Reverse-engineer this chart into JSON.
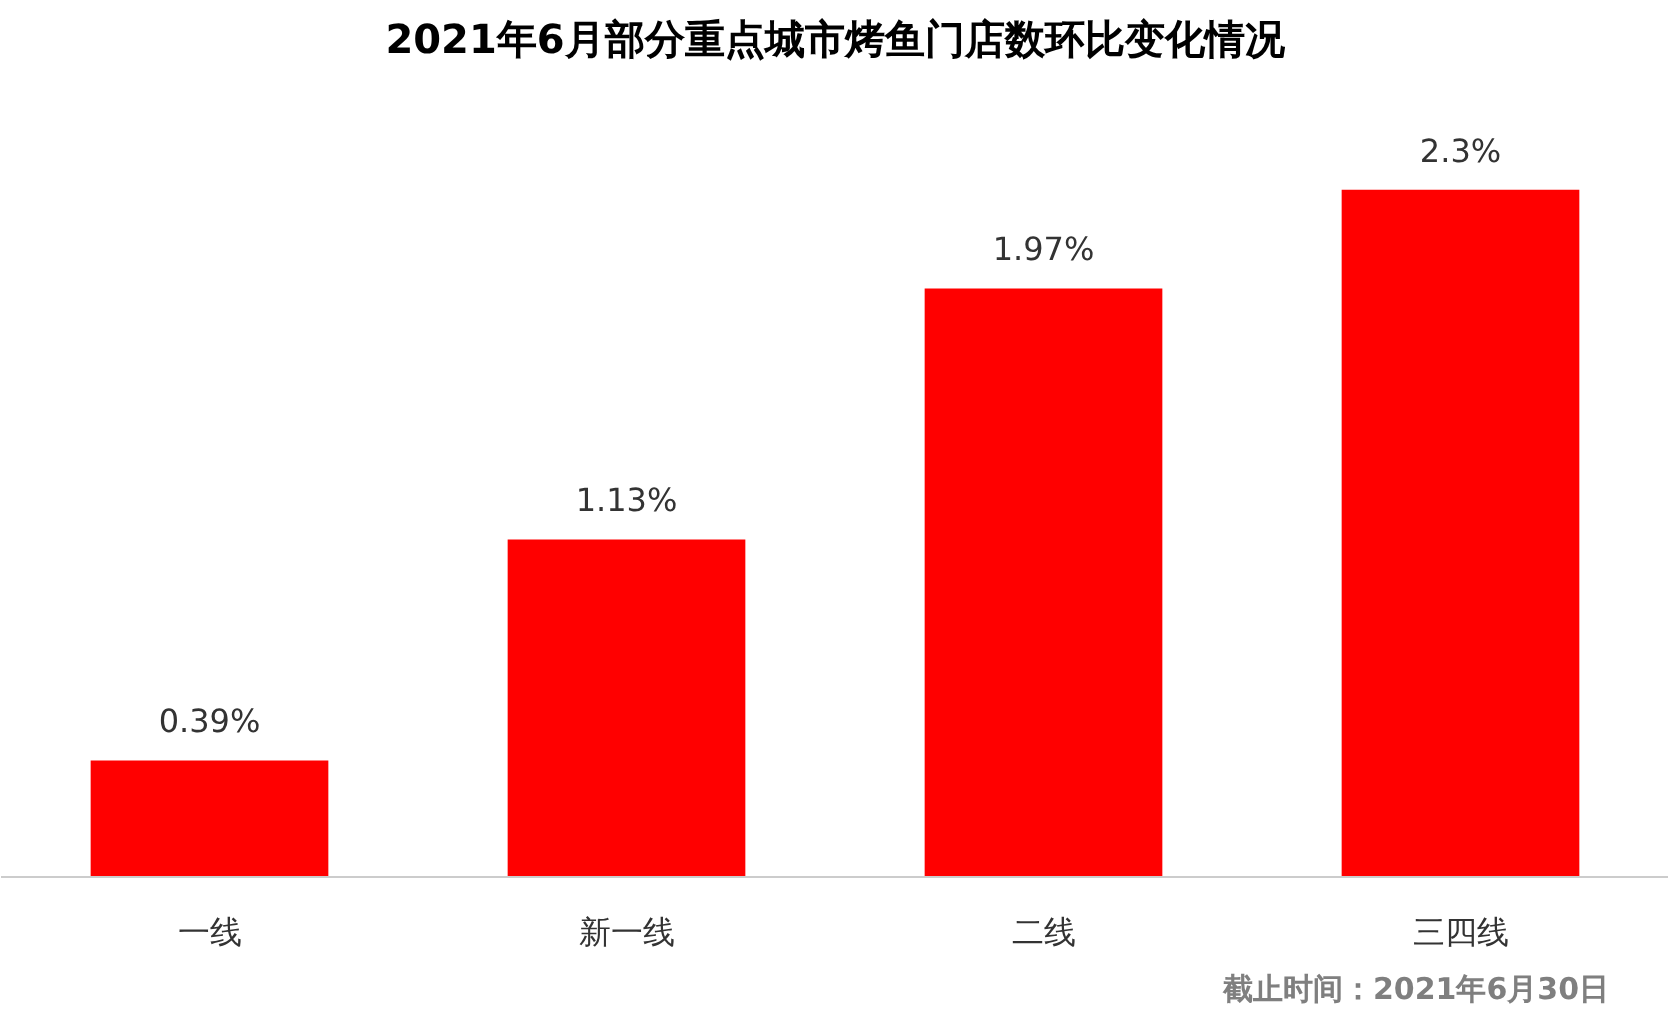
{
  "chart_data": {
    "type": "bar",
    "title": "2021年6月部分重点城市烤鱼门店数环比变化情况",
    "categories": [
      "一线",
      "新一线",
      "二线",
      "三四线"
    ],
    "values": [
      0.39,
      1.13,
      1.97,
      2.3
    ],
    "value_labels": [
      "0.39%",
      "1.13%",
      "1.97%",
      "2.3%"
    ],
    "color": "#ff0000",
    "grid": false,
    "annotations": [
      "截止时间：2021年6月30日"
    ]
  }
}
